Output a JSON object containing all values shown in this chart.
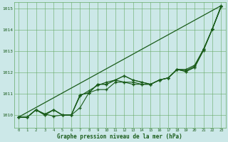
{
  "xlabel_label": "Graphe pression niveau de la mer (hPa)",
  "x_ticks": [
    0,
    1,
    2,
    3,
    4,
    5,
    6,
    7,
    8,
    9,
    10,
    11,
    12,
    13,
    14,
    15,
    16,
    17,
    18,
    19,
    20,
    21,
    22,
    23
  ],
  "xlim": [
    -0.5,
    23.5
  ],
  "ylim": [
    1009.4,
    1015.3
  ],
  "yticks": [
    1010,
    1011,
    1012,
    1013,
    1014,
    1015
  ],
  "bg_color": "#cce8e8",
  "grid_color": "#66aa66",
  "line_color": "#1a5c1a",
  "series": [
    [
      1009.9,
      1009.9,
      1010.25,
      1010.05,
      1009.95,
      1010.0,
      1010.0,
      1010.35,
      1011.05,
      1011.2,
      1011.2,
      1011.55,
      1011.55,
      1011.45,
      1011.45,
      1011.45,
      1011.65,
      1011.75,
      1012.15,
      1012.1,
      1012.3,
      1013.1,
      1014.05,
      1015.1
    ],
    [
      1009.9,
      1009.9,
      1010.25,
      1010.05,
      1010.25,
      1010.0,
      1010.0,
      1010.9,
      1011.15,
      1011.4,
      1011.55,
      1011.65,
      1011.55,
      1011.55,
      1011.45,
      1011.45,
      1011.65,
      1011.75,
      1012.15,
      1012.15,
      1012.35,
      1013.1,
      1014.05,
      1015.1
    ],
    [
      1009.9,
      1009.9,
      1010.25,
      1010.0,
      1010.25,
      1010.0,
      1010.0,
      1010.95,
      1011.05,
      1011.45,
      1011.45,
      1011.65,
      1011.85,
      1011.65,
      1011.55,
      1011.45,
      1011.65,
      1011.75,
      1012.15,
      1012.05,
      1012.25,
      1013.05,
      1014.05,
      1015.1
    ],
    [
      1009.9,
      1009.9,
      1010.25,
      1010.0,
      1010.25,
      1010.0,
      1010.0,
      1010.95,
      1011.05,
      1011.45,
      1011.45,
      1011.65,
      1011.85,
      1011.65,
      1011.55,
      1011.45,
      1011.65,
      1011.75,
      1012.15,
      1012.05,
      1012.25,
      1013.05,
      1014.05,
      1015.15
    ]
  ],
  "straight_line": [
    1009.9,
    1015.15
  ]
}
